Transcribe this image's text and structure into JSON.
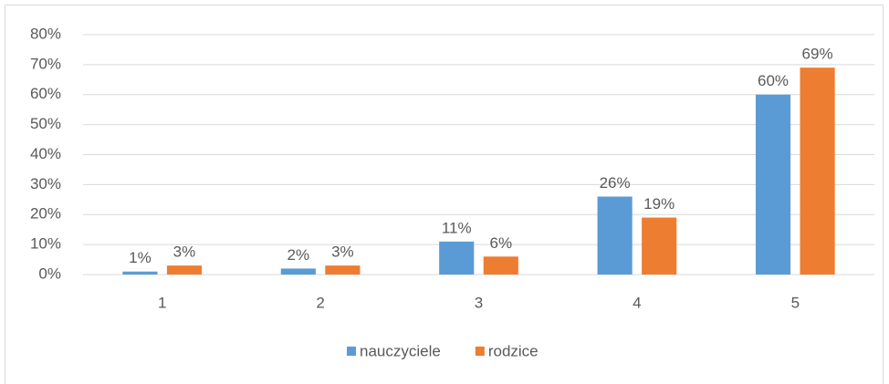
{
  "chart_data": {
    "type": "bar",
    "categories": [
      "1",
      "2",
      "3",
      "4",
      "5"
    ],
    "series": [
      {
        "name": "nauczyciele",
        "color": "#5b9bd5",
        "values": [
          1,
          2,
          11,
          26,
          60
        ],
        "value_labels": [
          "1%",
          "2%",
          "11%",
          "26%",
          "60%"
        ]
      },
      {
        "name": "rodzice",
        "color": "#ed7d31",
        "values": [
          3,
          3,
          6,
          19,
          69
        ],
        "value_labels": [
          "3%",
          "3%",
          "6%",
          "19%",
          "69%"
        ]
      }
    ],
    "ylim": [
      0,
      80
    ],
    "yticks": [
      {
        "value": 0,
        "label": "0%"
      },
      {
        "value": 10,
        "label": "10%"
      },
      {
        "value": 20,
        "label": "20%"
      },
      {
        "value": 30,
        "label": "30%"
      },
      {
        "value": 40,
        "label": "40%"
      },
      {
        "value": 50,
        "label": "50%"
      },
      {
        "value": 60,
        "label": "60%"
      },
      {
        "value": 70,
        "label": "70%"
      },
      {
        "value": 80,
        "label": "80%"
      }
    ],
    "grid": true,
    "legend": "bottom"
  }
}
